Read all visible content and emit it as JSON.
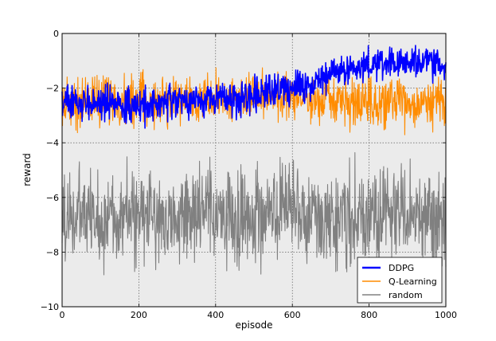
{
  "chart_data": {
    "type": "line",
    "title": "",
    "xlabel": "episode",
    "ylabel": "reward",
    "xlim": [
      0,
      1000
    ],
    "ylim": [
      -10,
      0
    ],
    "xticks": [
      0,
      200,
      400,
      600,
      800,
      1000
    ],
    "yticks": [
      -10,
      -8,
      -6,
      -4,
      -2,
      0
    ],
    "xtick_labels": [
      "0",
      "200",
      "400",
      "600",
      "800",
      "1000"
    ],
    "ytick_labels": [
      "−10",
      "−8",
      "−6",
      "−4",
      "−2",
      "0"
    ],
    "grid": true,
    "background": "#ebebeb",
    "legend_position": "bottom-right",
    "series": [
      {
        "name": "random",
        "color": "#808080",
        "x": [
          0,
          50,
          100,
          150,
          200,
          250,
          300,
          350,
          400,
          450,
          500,
          550,
          600,
          650,
          700,
          750,
          800,
          850,
          900,
          950,
          1000
        ],
        "y": [
          -6.8,
          -6.6,
          -6.9,
          -6.5,
          -6.8,
          -6.6,
          -6.9,
          -6.5,
          -6.7,
          -6.8,
          -6.6,
          -6.7,
          -6.5,
          -6.8,
          -6.6,
          -6.7,
          -6.9,
          -6.5,
          -6.7,
          -6.6,
          -6.8
        ],
        "spread": [
          1.3,
          1.2,
          1.3,
          1.2,
          1.3,
          1.3,
          1.2,
          1.3,
          1.2,
          1.3,
          1.3,
          1.2,
          1.3,
          1.2,
          1.3,
          1.3,
          1.2,
          1.3,
          1.2,
          1.3,
          1.3
        ]
      },
      {
        "name": "Q-Learning",
        "color": "#ff8c00",
        "x": [
          0,
          50,
          100,
          150,
          200,
          250,
          300,
          350,
          400,
          450,
          500,
          550,
          600,
          650,
          700,
          750,
          800,
          850,
          900,
          950,
          1000
        ],
        "y": [
          -2.6,
          -2.5,
          -2.4,
          -2.5,
          -2.4,
          -2.5,
          -2.4,
          -2.4,
          -2.3,
          -2.4,
          -2.3,
          -2.4,
          -2.3,
          -2.4,
          -2.5,
          -2.6,
          -2.6,
          -2.6,
          -2.6,
          -2.5,
          -2.6
        ],
        "spread": [
          0.7,
          0.7,
          0.7,
          0.65,
          0.65,
          0.65,
          0.65,
          0.6,
          0.6,
          0.6,
          0.6,
          0.6,
          0.6,
          0.6,
          0.6,
          0.65,
          0.65,
          0.65,
          0.65,
          0.65,
          0.65
        ]
      },
      {
        "name": "DDPG",
        "color": "#0000ff",
        "x": [
          0,
          50,
          100,
          150,
          200,
          250,
          300,
          350,
          400,
          450,
          500,
          550,
          600,
          650,
          700,
          750,
          800,
          850,
          900,
          950,
          1000
        ],
        "y": [
          -2.5,
          -2.6,
          -2.5,
          -2.6,
          -2.7,
          -2.6,
          -2.5,
          -2.5,
          -2.3,
          -2.4,
          -2.2,
          -2.0,
          -2.0,
          -1.9,
          -1.4,
          -1.3,
          -1.2,
          -1.1,
          -1.1,
          -1.1,
          -1.2
        ],
        "spread": [
          0.45,
          0.45,
          0.45,
          0.45,
          0.45,
          0.45,
          0.45,
          0.45,
          0.45,
          0.45,
          0.45,
          0.45,
          0.45,
          0.45,
          0.4,
          0.4,
          0.4,
          0.4,
          0.4,
          0.4,
          0.4
        ]
      }
    ],
    "legend_order": [
      "DDPG",
      "Q-Learning",
      "random"
    ]
  }
}
